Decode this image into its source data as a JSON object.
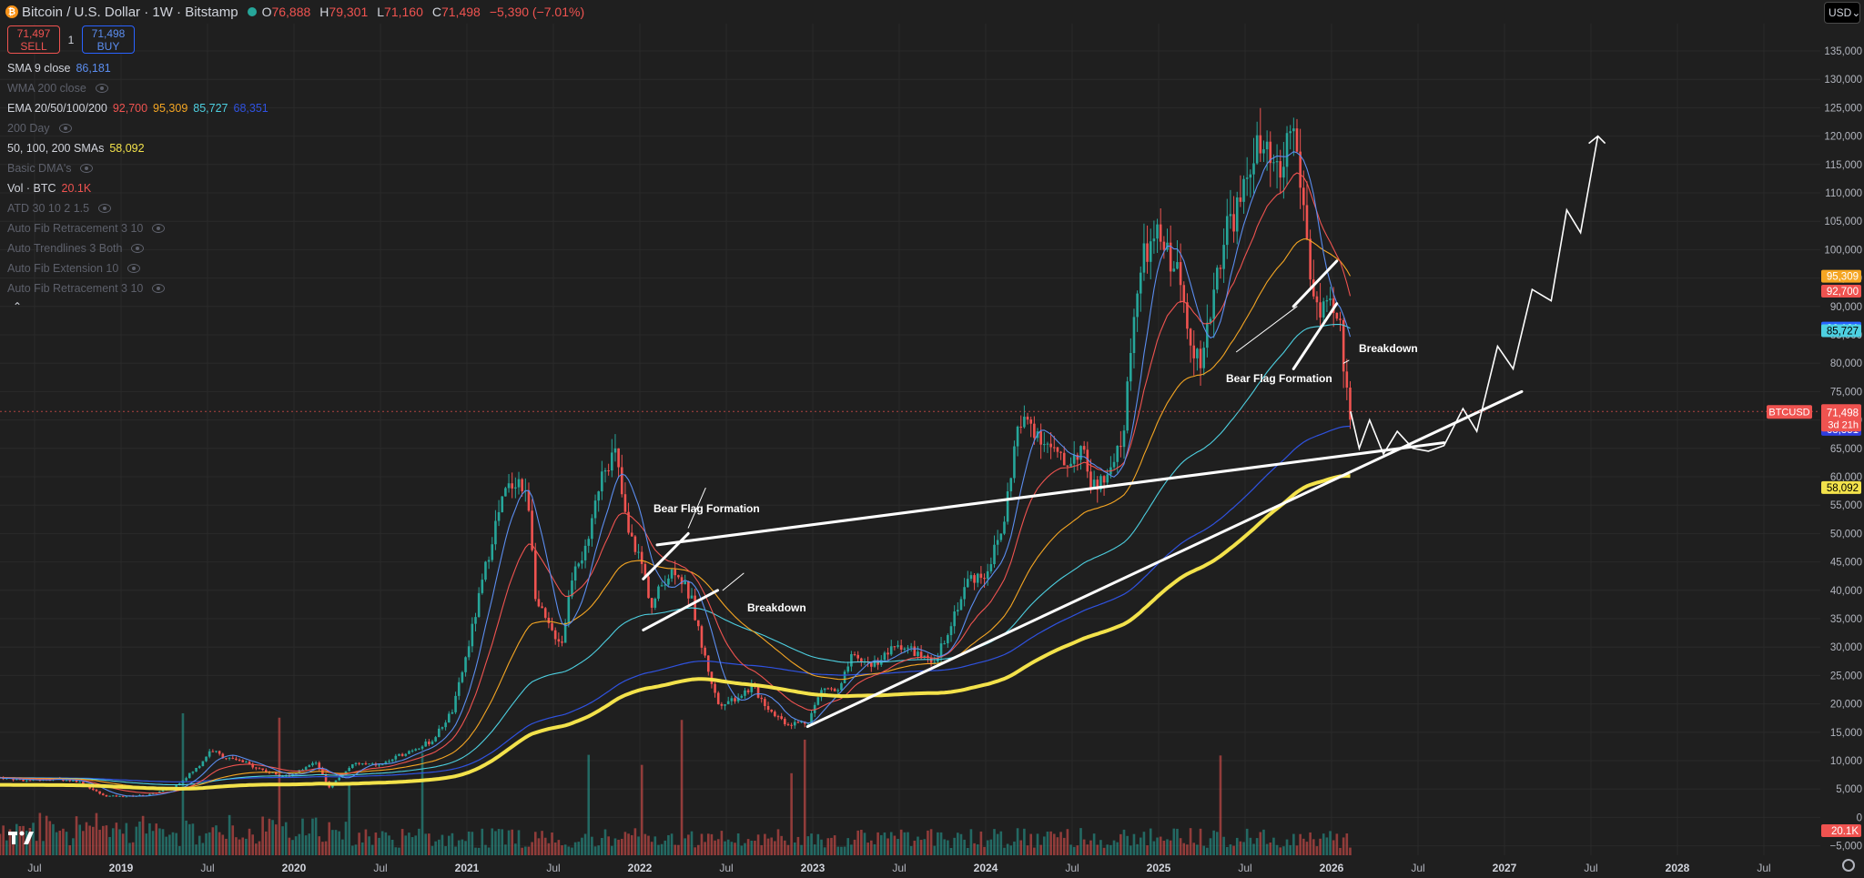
{
  "header": {
    "coin_glyph": "₿",
    "symbol_text": "Bitcoin / U.S. Dollar · 1W · Bitstamp",
    "o_label": "O",
    "o_value": "76,888",
    "h_label": "H",
    "h_value": "79,301",
    "l_label": "L",
    "l_value": "71,160",
    "c_label": "C",
    "c_value": "71,498",
    "change": "−5,390 (−7.01%)"
  },
  "trade": {
    "sell_price": "71,497",
    "sell_label": "SELL",
    "qty": "1",
    "buy_price": "71,498",
    "buy_label": "BUY"
  },
  "currency": "USD",
  "legend": [
    {
      "name": "SMA 9 close",
      "values": [
        {
          "text": "86,181",
          "color": "#5b8def"
        }
      ],
      "dim": false,
      "eye": false
    },
    {
      "name": "WMA 200 close",
      "values": [],
      "dim": true,
      "eye": true
    },
    {
      "name": "EMA 20/50/100/200",
      "values": [
        {
          "text": "92,700",
          "color": "#ef5350"
        },
        {
          "text": "95,309",
          "color": "#f5a623"
        },
        {
          "text": "85,727",
          "color": "#4dd0e1"
        },
        {
          "text": "68,351",
          "color": "#2f52e0"
        }
      ],
      "dim": false,
      "eye": false
    },
    {
      "name": "200 Day",
      "values": [],
      "dim": true,
      "eye": true
    },
    {
      "name": "50, 100, 200 SMAs",
      "values": [
        {
          "text": "58,092",
          "color": "#f3e24b"
        }
      ],
      "dim": false,
      "eye": false
    },
    {
      "name": "Basic DMA's",
      "values": [],
      "dim": true,
      "eye": true
    },
    {
      "name": "Vol · BTC",
      "values": [
        {
          "text": "20.1K",
          "color": "#ef5350"
        }
      ],
      "dim": false,
      "eye": false
    },
    {
      "name": "ATD 30 10 2 1.5",
      "values": [],
      "dim": true,
      "eye": true
    },
    {
      "name": "Auto Fib Retracement 3 10",
      "values": [],
      "dim": true,
      "eye": true
    },
    {
      "name": "Auto Trendlines 3 Both",
      "values": [],
      "dim": true,
      "eye": true
    },
    {
      "name": "Auto Fib Extension 10",
      "values": [],
      "dim": true,
      "eye": true
    },
    {
      "name": "Auto Fib Retracement 3 10",
      "values": [],
      "dim": true,
      "eye": true
    }
  ],
  "colors": {
    "bg": "#1f1f1f",
    "up": "#26a69a",
    "down": "#ef5350",
    "sma9": "#5b8def",
    "ema20": "#ef5350",
    "ema50": "#f5a623",
    "ema100": "#4dd0e1",
    "ema200": "#2f52e0",
    "sma200": "#f3e24b",
    "drawing": "#ffffff"
  },
  "chart_data": {
    "type": "line",
    "title": "",
    "y_ticks": [
      "135,000",
      "130,000",
      "125,000",
      "120,000",
      "115,000",
      "110,000",
      "105,000",
      "100,000",
      "95,000",
      "90,000",
      "85,000",
      "80,000",
      "75,000",
      "70,000",
      "65,000",
      "60,000",
      "55,000",
      "50,000",
      "45,000",
      "40,000",
      "35,000",
      "30,000",
      "25,000",
      "20,000",
      "15,000",
      "10,000",
      "5,000",
      "0",
      "−5,000"
    ],
    "ylim": [
      -5000,
      140000
    ],
    "x_ticks": [
      {
        "t": 2018.5,
        "label": "Jul",
        "bold": false
      },
      {
        "t": 2019.0,
        "label": "2019",
        "bold": true
      },
      {
        "t": 2019.5,
        "label": "Jul",
        "bold": false
      },
      {
        "t": 2020.0,
        "label": "2020",
        "bold": true
      },
      {
        "t": 2020.5,
        "label": "Jul",
        "bold": false
      },
      {
        "t": 2021.0,
        "label": "2021",
        "bold": true
      },
      {
        "t": 2021.5,
        "label": "Jul",
        "bold": false
      },
      {
        "t": 2022.0,
        "label": "2022",
        "bold": true
      },
      {
        "t": 2022.5,
        "label": "Jul",
        "bold": false
      },
      {
        "t": 2023.0,
        "label": "2023",
        "bold": true
      },
      {
        "t": 2023.5,
        "label": "Jul",
        "bold": false
      },
      {
        "t": 2024.0,
        "label": "2024",
        "bold": true
      },
      {
        "t": 2024.5,
        "label": "Jul",
        "bold": false
      },
      {
        "t": 2025.0,
        "label": "2025",
        "bold": true
      },
      {
        "t": 2025.5,
        "label": "Jul",
        "bold": false
      },
      {
        "t": 2026.0,
        "label": "2026",
        "bold": true
      },
      {
        "t": 2026.5,
        "label": "Jul",
        "bold": false
      },
      {
        "t": 2027.0,
        "label": "2027",
        "bold": true
      },
      {
        "t": 2027.5,
        "label": "Jul",
        "bold": false
      },
      {
        "t": 2028.0,
        "label": "2028",
        "bold": true
      },
      {
        "t": 2028.5,
        "label": "Jul",
        "bold": false
      }
    ],
    "price_path": [
      [
        2018.3,
        7000
      ],
      [
        2018.45,
        6500
      ],
      [
        2018.6,
        6800
      ],
      [
        2018.75,
        6400
      ],
      [
        2018.9,
        3800
      ],
      [
        2019.0,
        3700
      ],
      [
        2019.15,
        3900
      ],
      [
        2019.3,
        5200
      ],
      [
        2019.45,
        9000
      ],
      [
        2019.52,
        12000
      ],
      [
        2019.6,
        10500
      ],
      [
        2019.7,
        9800
      ],
      [
        2019.85,
        8000
      ],
      [
        2019.95,
        7200
      ],
      [
        2020.05,
        8500
      ],
      [
        2020.12,
        10000
      ],
      [
        2020.2,
        5300
      ],
      [
        2020.35,
        9500
      ],
      [
        2020.5,
        9200
      ],
      [
        2020.65,
        11500
      ],
      [
        2020.8,
        13500
      ],
      [
        2020.92,
        19000
      ],
      [
        2021.0,
        29000
      ],
      [
        2021.08,
        40000
      ],
      [
        2021.15,
        50000
      ],
      [
        2021.22,
        57000
      ],
      [
        2021.29,
        60000
      ],
      [
        2021.36,
        55000
      ],
      [
        2021.4,
        38000
      ],
      [
        2021.48,
        33000
      ],
      [
        2021.55,
        31000
      ],
      [
        2021.62,
        45000
      ],
      [
        2021.7,
        47000
      ],
      [
        2021.78,
        62000
      ],
      [
        2021.86,
        64000
      ],
      [
        2021.93,
        50000
      ],
      [
        2022.0,
        46000
      ],
      [
        2022.07,
        37000
      ],
      [
        2022.14,
        42000
      ],
      [
        2022.21,
        44000
      ],
      [
        2022.3,
        38000
      ],
      [
        2022.36,
        30000
      ],
      [
        2022.45,
        20000
      ],
      [
        2022.55,
        21000
      ],
      [
        2022.65,
        23000
      ],
      [
        2022.75,
        19000
      ],
      [
        2022.85,
        16500
      ],
      [
        2022.97,
        16800
      ],
      [
        2023.06,
        23000
      ],
      [
        2023.15,
        22000
      ],
      [
        2023.22,
        28000
      ],
      [
        2023.35,
        27000
      ],
      [
        2023.5,
        30500
      ],
      [
        2023.6,
        29000
      ],
      [
        2023.7,
        26500
      ],
      [
        2023.8,
        34500
      ],
      [
        2023.9,
        42000
      ],
      [
        2024.0,
        43000
      ],
      [
        2024.1,
        51000
      ],
      [
        2024.18,
        68000
      ],
      [
        2024.25,
        70000
      ],
      [
        2024.35,
        66000
      ],
      [
        2024.45,
        62000
      ],
      [
        2024.55,
        65000
      ],
      [
        2024.62,
        58000
      ],
      [
        2024.72,
        60000
      ],
      [
        2024.8,
        68000
      ],
      [
        2024.85,
        88000
      ],
      [
        2024.92,
        99000
      ],
      [
        2025.0,
        102000
      ],
      [
        2025.1,
        97000
      ],
      [
        2025.18,
        86000
      ],
      [
        2025.25,
        78000
      ],
      [
        2025.32,
        94000
      ],
      [
        2025.4,
        105000
      ],
      [
        2025.48,
        108000
      ],
      [
        2025.55,
        118000
      ],
      [
        2025.62,
        116000
      ],
      [
        2025.7,
        112000
      ],
      [
        2025.77,
        123000
      ],
      [
        2025.83,
        110000
      ],
      [
        2025.88,
        95000
      ],
      [
        2025.93,
        88000
      ],
      [
        2026.0,
        89000
      ],
      [
        2026.05,
        86000
      ],
      [
        2026.08,
        76000
      ],
      [
        2026.11,
        71500
      ]
    ],
    "volume_bars": "weekly volume histogram, up/down colored",
    "price_labels": [
      {
        "value": 95309,
        "text": "95,309",
        "color": "#f5a623",
        "text_color": "#ffffff"
      },
      {
        "value": 92700,
        "text": "92,700",
        "color": "#ef5350",
        "text_color": "#ffffff"
      },
      {
        "value": 86181,
        "text": "86,181",
        "color": "#2962ff",
        "text_color": "#ffffff"
      },
      {
        "value": 85727,
        "text": "85,727",
        "color": "#4dd0e1",
        "text_color": "#000000"
      },
      {
        "value": 68351,
        "text": "68,351",
        "color": "#2f3ee0",
        "text_color": "#ffffff"
      },
      {
        "value": 58092,
        "text": "58,092",
        "color": "#f3e24b",
        "text_color": "#000000"
      }
    ],
    "current_price": {
      "value": 71498,
      "symbol": "BTCUSD",
      "text": "71,498",
      "countdown": "3d 21h"
    },
    "volume_label": "20.1K",
    "annotations": [
      {
        "text": "Bear Flag Formation",
        "id": "bf1"
      },
      {
        "text": "Breakdown",
        "id": "bd1"
      },
      {
        "text": "Bear Flag Formation",
        "id": "bf2"
      },
      {
        "text": "Breakdown",
        "id": "bd2"
      }
    ],
    "projection_path": [
      [
        2026.11,
        71500
      ],
      [
        2026.16,
        65000
      ],
      [
        2026.22,
        70000
      ],
      [
        2026.3,
        64000
      ],
      [
        2026.38,
        68000
      ],
      [
        2026.47,
        65000
      ],
      [
        2026.56,
        64500
      ],
      [
        2026.65,
        65500
      ],
      [
        2026.76,
        72000
      ],
      [
        2026.84,
        68000
      ],
      [
        2026.96,
        83000
      ],
      [
        2027.05,
        79000
      ],
      [
        2027.16,
        93000
      ],
      [
        2027.27,
        91000
      ],
      [
        2027.36,
        107000
      ],
      [
        2027.44,
        103000
      ],
      [
        2027.54,
        120000
      ]
    ]
  }
}
